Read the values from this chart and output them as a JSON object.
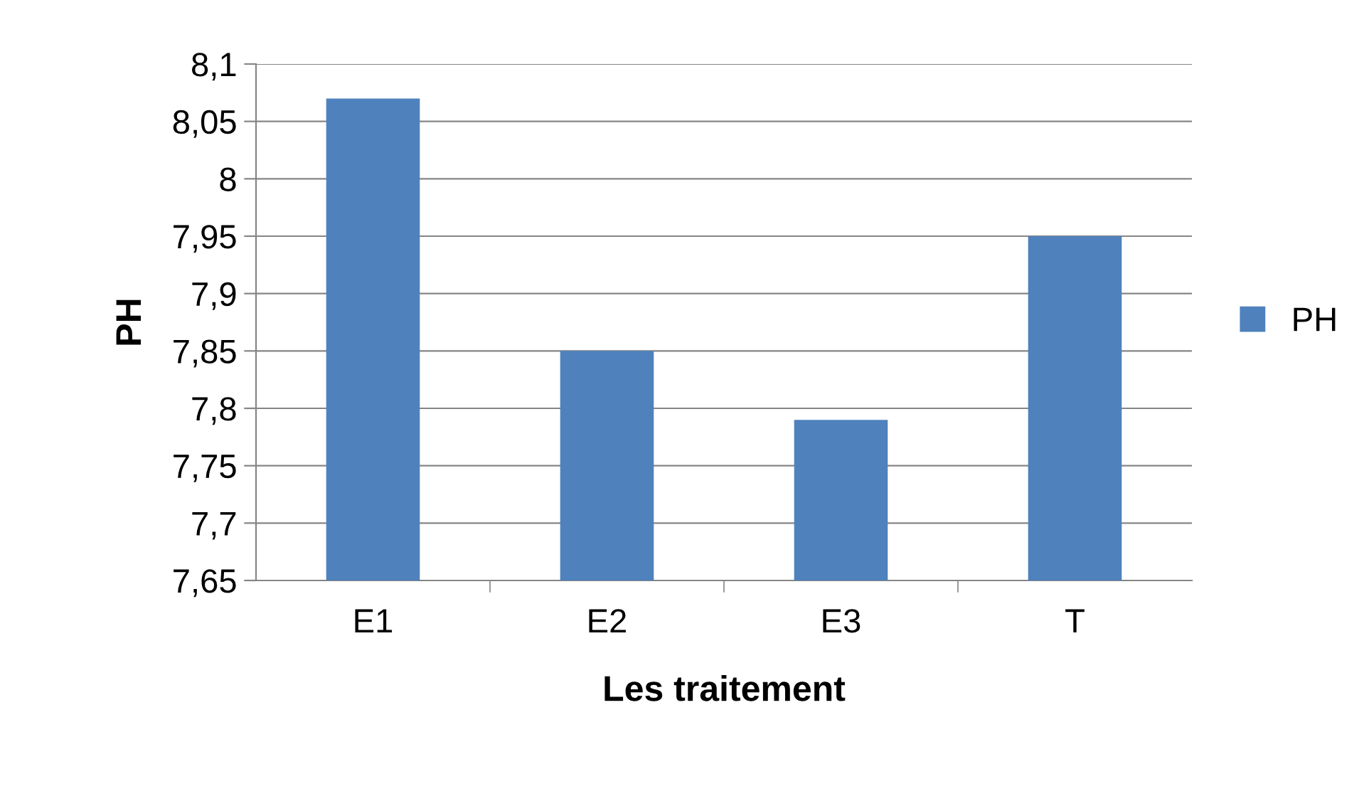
{
  "chart_data": {
    "type": "bar",
    "xlabel": "Les traitement",
    "ylabel": "PH",
    "categories": [
      "E1",
      "E2",
      "E3",
      "T"
    ],
    "series": [
      {
        "name": "PH",
        "color": "#4f81bd",
        "values": [
          8.07,
          7.85,
          7.79,
          7.95
        ]
      }
    ],
    "ylim": [
      7.65,
      8.1
    ],
    "yticks": [
      {
        "value": 7.65,
        "label": "7,65"
      },
      {
        "value": 7.7,
        "label": "7,7"
      },
      {
        "value": 7.75,
        "label": "7,75"
      },
      {
        "value": 7.8,
        "label": "7,8"
      },
      {
        "value": 7.85,
        "label": "7,85"
      },
      {
        "value": 7.9,
        "label": "7,9"
      },
      {
        "value": 7.95,
        "label": "7,95"
      },
      {
        "value": 8.0,
        "label": "8"
      },
      {
        "value": 8.05,
        "label": "8,05"
      },
      {
        "value": 8.1,
        "label": "8,1"
      }
    ],
    "grid": "y",
    "legend": "right"
  }
}
